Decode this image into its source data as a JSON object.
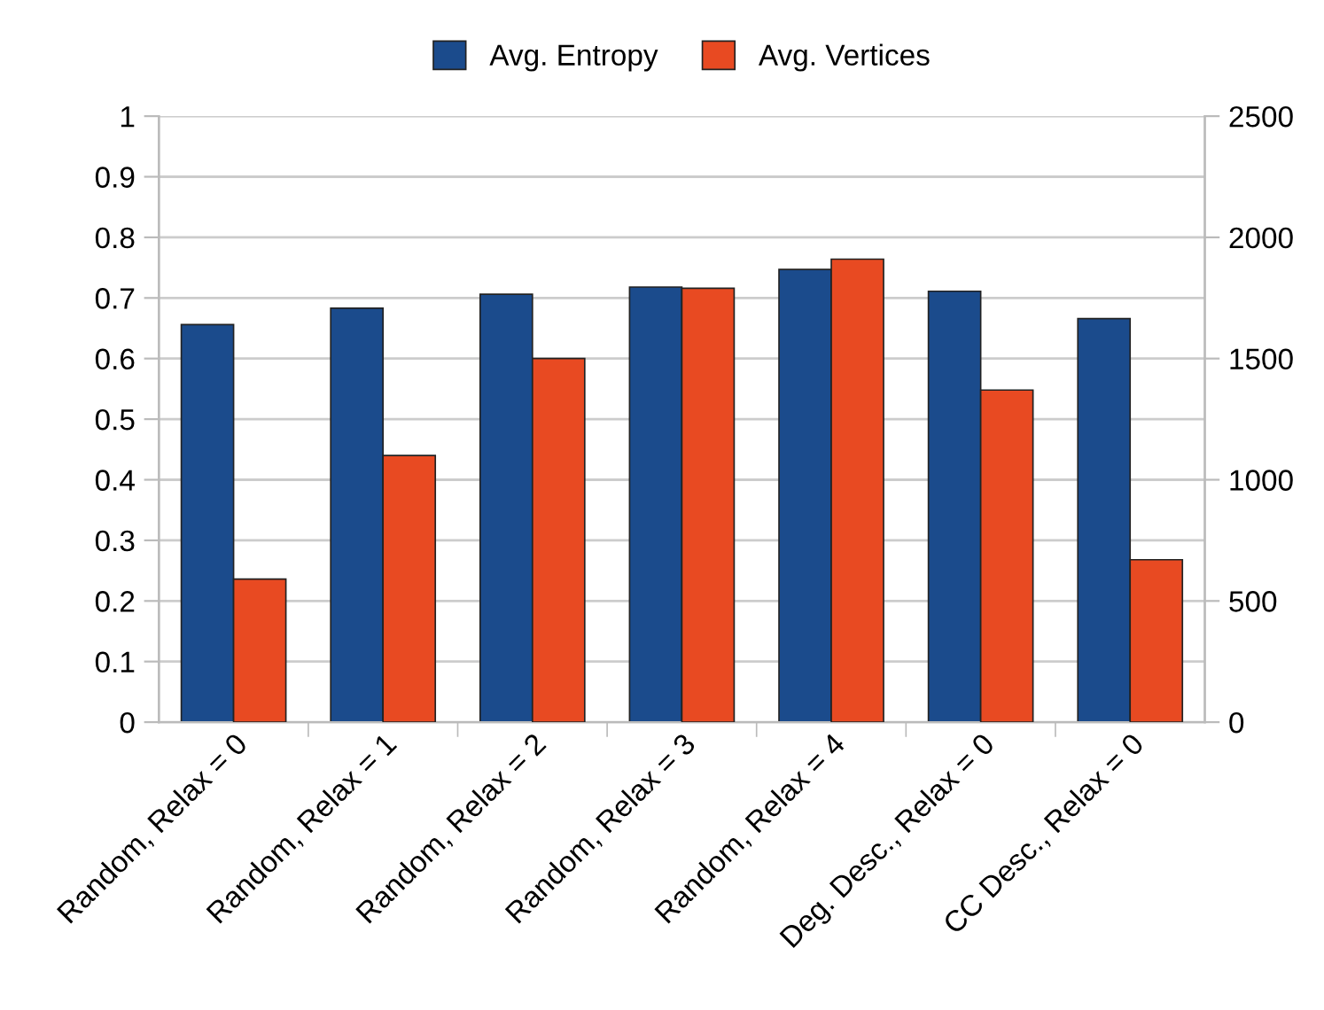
{
  "chart_data": {
    "type": "bar",
    "categories": [
      "Random, Relax = 0",
      "Random, Relax = 1",
      "Random, Relax = 2",
      "Random, Relax = 3",
      "Random, Relax = 4",
      "Deg. Desc., Relax = 0",
      "CC Desc., Relax = 0"
    ],
    "series": [
      {
        "name": "Avg. Entropy",
        "color": "#1b4b8c",
        "values": [
          0.656,
          0.683,
          0.706,
          0.718,
          0.747,
          0.711,
          0.666
        ]
      },
      {
        "name": "Avg. Vertices",
        "color": "#e84a22",
        "axis": "y2",
        "values": [
          590,
          1100,
          1500,
          1790,
          1910,
          1370,
          670
        ]
      }
    ],
    "ylim": [
      0,
      1
    ],
    "yticks": [
      0,
      0.1,
      0.2,
      0.3,
      0.4,
      0.5,
      0.6,
      0.7,
      0.8,
      0.9,
      1
    ],
    "y2lim": [
      0,
      2500
    ],
    "y2ticks": [
      0,
      500,
      1000,
      1500,
      2000,
      2500
    ],
    "grid": "y",
    "legend": "top"
  }
}
